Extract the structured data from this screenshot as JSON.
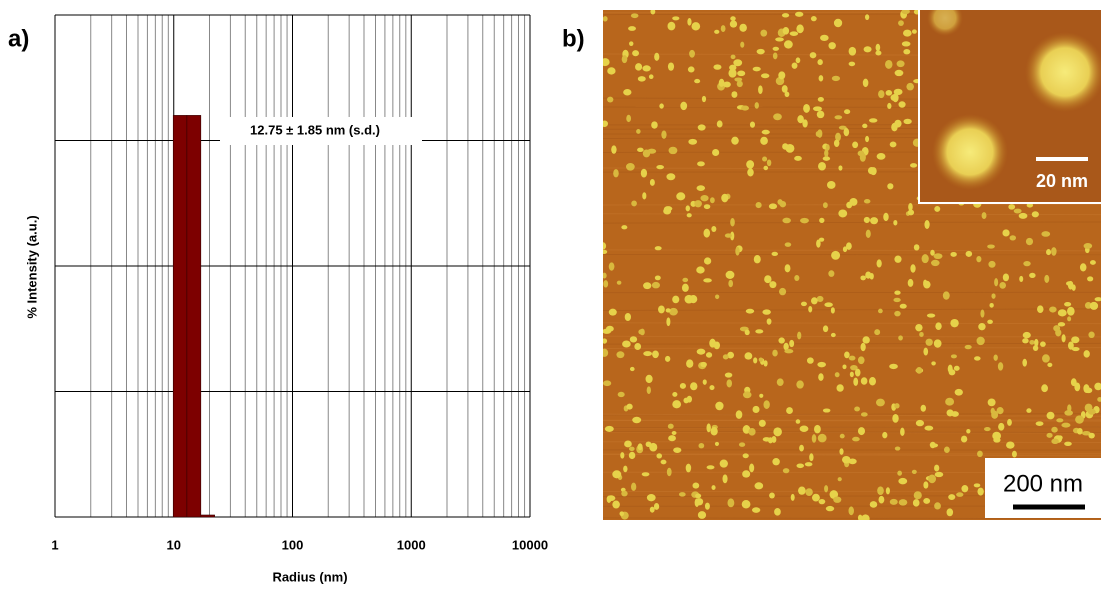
{
  "panels": {
    "a": "a)",
    "b": "b)"
  },
  "chart_data": {
    "type": "histogram",
    "xscale": "log",
    "xlabel": "Radius (nm)",
    "ylabel": "% Intensity (a.u.)",
    "annotation": "12.75 ± 1.85 nm (s.d.)",
    "bins": [
      9.9,
      12.9,
      16.9,
      22.1
    ],
    "values": [
      80,
      80,
      0.4
    ],
    "color": "#7d0000",
    "xlim": [
      1,
      10000
    ],
    "xticks": [
      1,
      10,
      100,
      1000,
      10000
    ],
    "ylim": [
      0,
      100
    ],
    "yticks": [
      0,
      25,
      50,
      75,
      100
    ],
    "grid": true
  },
  "image": {
    "scale_bar": "200 nm",
    "inset_scale_bar": "20 nm"
  }
}
